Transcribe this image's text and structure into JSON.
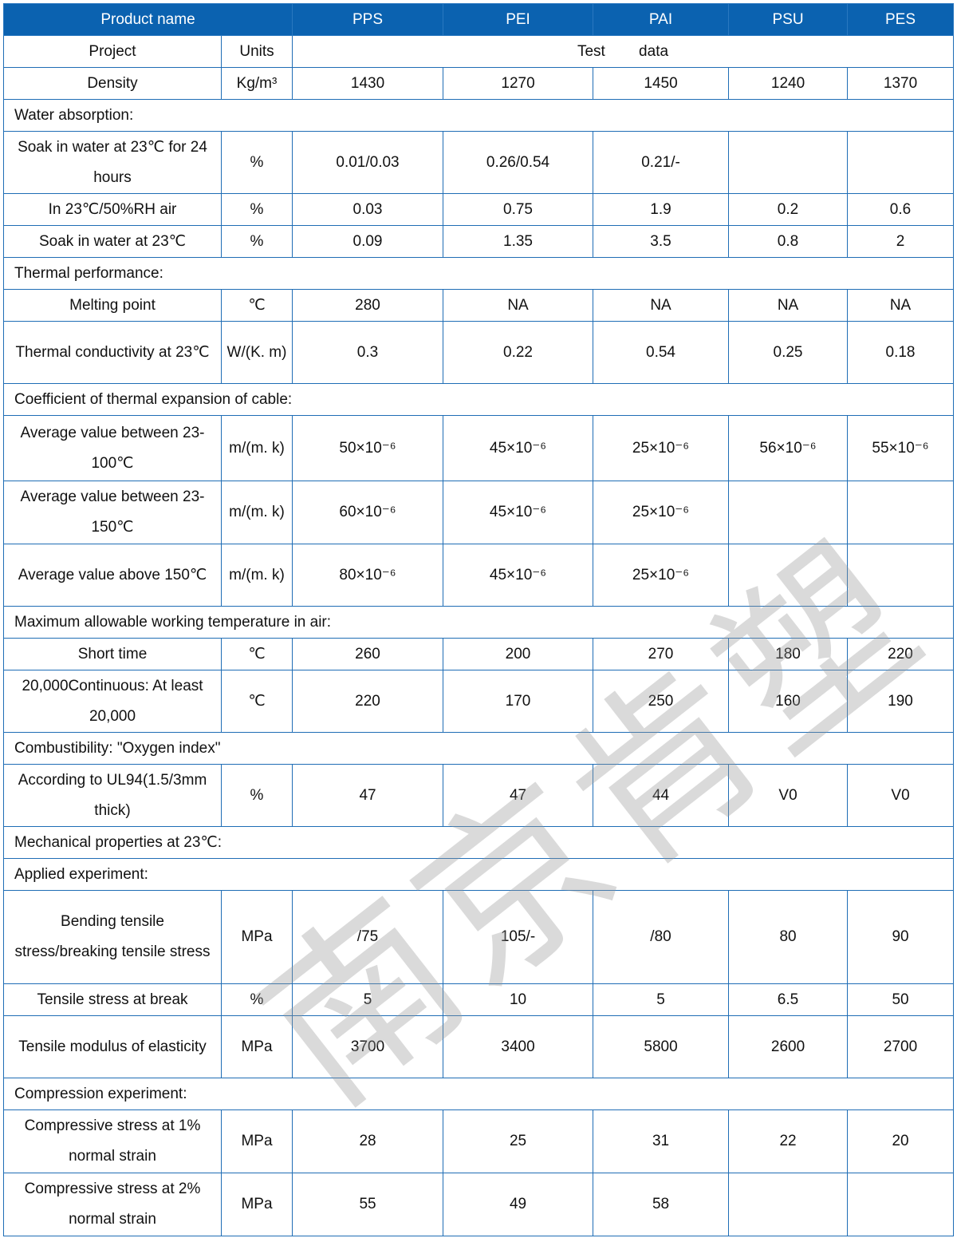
{
  "header": {
    "product_name": "Product name",
    "columns": [
      "PPS",
      "PEI",
      "PAI",
      "PSU",
      "PES"
    ]
  },
  "subheader": {
    "project": "Project",
    "units": "Units",
    "test_data": "Test        data"
  },
  "rows": [
    {
      "type": "data",
      "label": "Density",
      "unit": "Kg/m³",
      "values": [
        "1430",
        "1270",
        "1450",
        "1240",
        "1370"
      ],
      "h": 40
    },
    {
      "type": "section",
      "label": "Water absorption:",
      "h": 40
    },
    {
      "type": "data",
      "label": "Soak in water at 23℃ for 24 hours",
      "unit": "%",
      "values": [
        "0.01/0.03",
        "0.26/0.54",
        "0.21/-",
        "",
        ""
      ],
      "h": 78
    },
    {
      "type": "data",
      "label": "In 23℃/50%RH air",
      "unit": "%",
      "values": [
        "0.03",
        "0.75",
        "1.9",
        "0.2",
        "0.6"
      ],
      "h": 40
    },
    {
      "type": "data",
      "label": "Soak in water at 23℃",
      "unit": "%",
      "values": [
        "0.09",
        "1.35",
        "3.5",
        "0.8",
        "2"
      ],
      "h": 40
    },
    {
      "type": "section",
      "label": "Thermal performance:",
      "h": 40
    },
    {
      "type": "data",
      "label": "Melting point",
      "unit": "℃",
      "values": [
        "280",
        "NA",
        "NA",
        "NA",
        "NA"
      ],
      "h": 40
    },
    {
      "type": "data",
      "label": "Thermal conductivity at 23℃",
      "unit": "W/(K. m)",
      "values": [
        "0.3",
        "0.22",
        "0.54",
        "0.25",
        "0.18"
      ],
      "h": 78
    },
    {
      "type": "section",
      "label": "Coefficient of thermal expansion of cable:",
      "h": 40
    },
    {
      "type": "data",
      "label": "Average value between 23-100℃",
      "unit": "m/(m. k)",
      "values": [
        "50×10⁻⁶",
        "45×10⁻⁶",
        "25×10⁻⁶",
        "56×10⁻⁶",
        "55×10⁻⁶"
      ],
      "h": 82
    },
    {
      "type": "data",
      "label": "Average value between 23-150℃",
      "unit": "m/(m. k)",
      "values": [
        "60×10⁻⁶",
        "45×10⁻⁶",
        "25×10⁻⁶",
        "",
        ""
      ],
      "h": 79
    },
    {
      "type": "data",
      "label": "Average value above 150℃",
      "unit": "m/(m. k)",
      "values": [
        "80×10⁻⁶",
        "45×10⁻⁶",
        "25×10⁻⁶",
        "",
        ""
      ],
      "h": 78
    },
    {
      "type": "section",
      "label": "Maximum allowable working temperature in air:",
      "h": 40
    },
    {
      "type": "data",
      "label": "Short time",
      "unit": "℃",
      "values": [
        "260",
        "200",
        "270",
        "180",
        "220"
      ],
      "h": 40
    },
    {
      "type": "data",
      "label": "20,000Continuous: At least 20,000",
      "unit": "℃",
      "values": [
        "220",
        "170",
        "250",
        "160",
        "190"
      ],
      "h": 78
    },
    {
      "type": "section",
      "label": "Combustibility: \"Oxygen index\"",
      "h": 40
    },
    {
      "type": "data",
      "label": "According to UL94(1.5/3mm thick)",
      "unit": "%",
      "values": [
        "47",
        "47",
        "44",
        "V0",
        "V0"
      ],
      "h": 78
    },
    {
      "type": "section",
      "label": "Mechanical properties at 23℃:",
      "h": 40
    },
    {
      "type": "section",
      "label": "Applied experiment:",
      "h": 40
    },
    {
      "type": "data",
      "label": "Bending tensile stress/breaking tensile stress",
      "unit": "MPa",
      "values": [
        "/75",
        "105/-",
        "/80",
        "80",
        "90"
      ],
      "h": 117
    },
    {
      "type": "data",
      "label": "Tensile stress at break",
      "unit": "%",
      "values": [
        "5",
        "10",
        "5",
        "6.5",
        "50"
      ],
      "h": 40
    },
    {
      "type": "data",
      "label": "Tensile modulus of elasticity",
      "unit": "MPa",
      "values": [
        "3700",
        "3400",
        "5800",
        "2600",
        "2700"
      ],
      "h": 78
    },
    {
      "type": "section",
      "label": "Compression experiment:",
      "h": 40
    },
    {
      "type": "data",
      "label": "Compressive stress at 1% normal strain",
      "unit": "MPa",
      "values": [
        "28",
        "25",
        "31",
        "22",
        "20"
      ],
      "h": 79
    },
    {
      "type": "data",
      "label": "Compressive stress at 2% normal strain",
      "unit": "MPa",
      "values": [
        "55",
        "49",
        "58",
        "",
        ""
      ],
      "h": 79
    }
  ],
  "watermark": "南京肯塑",
  "colors": {
    "header_bg": "#0b62b0",
    "border": "#1f6db5"
  }
}
